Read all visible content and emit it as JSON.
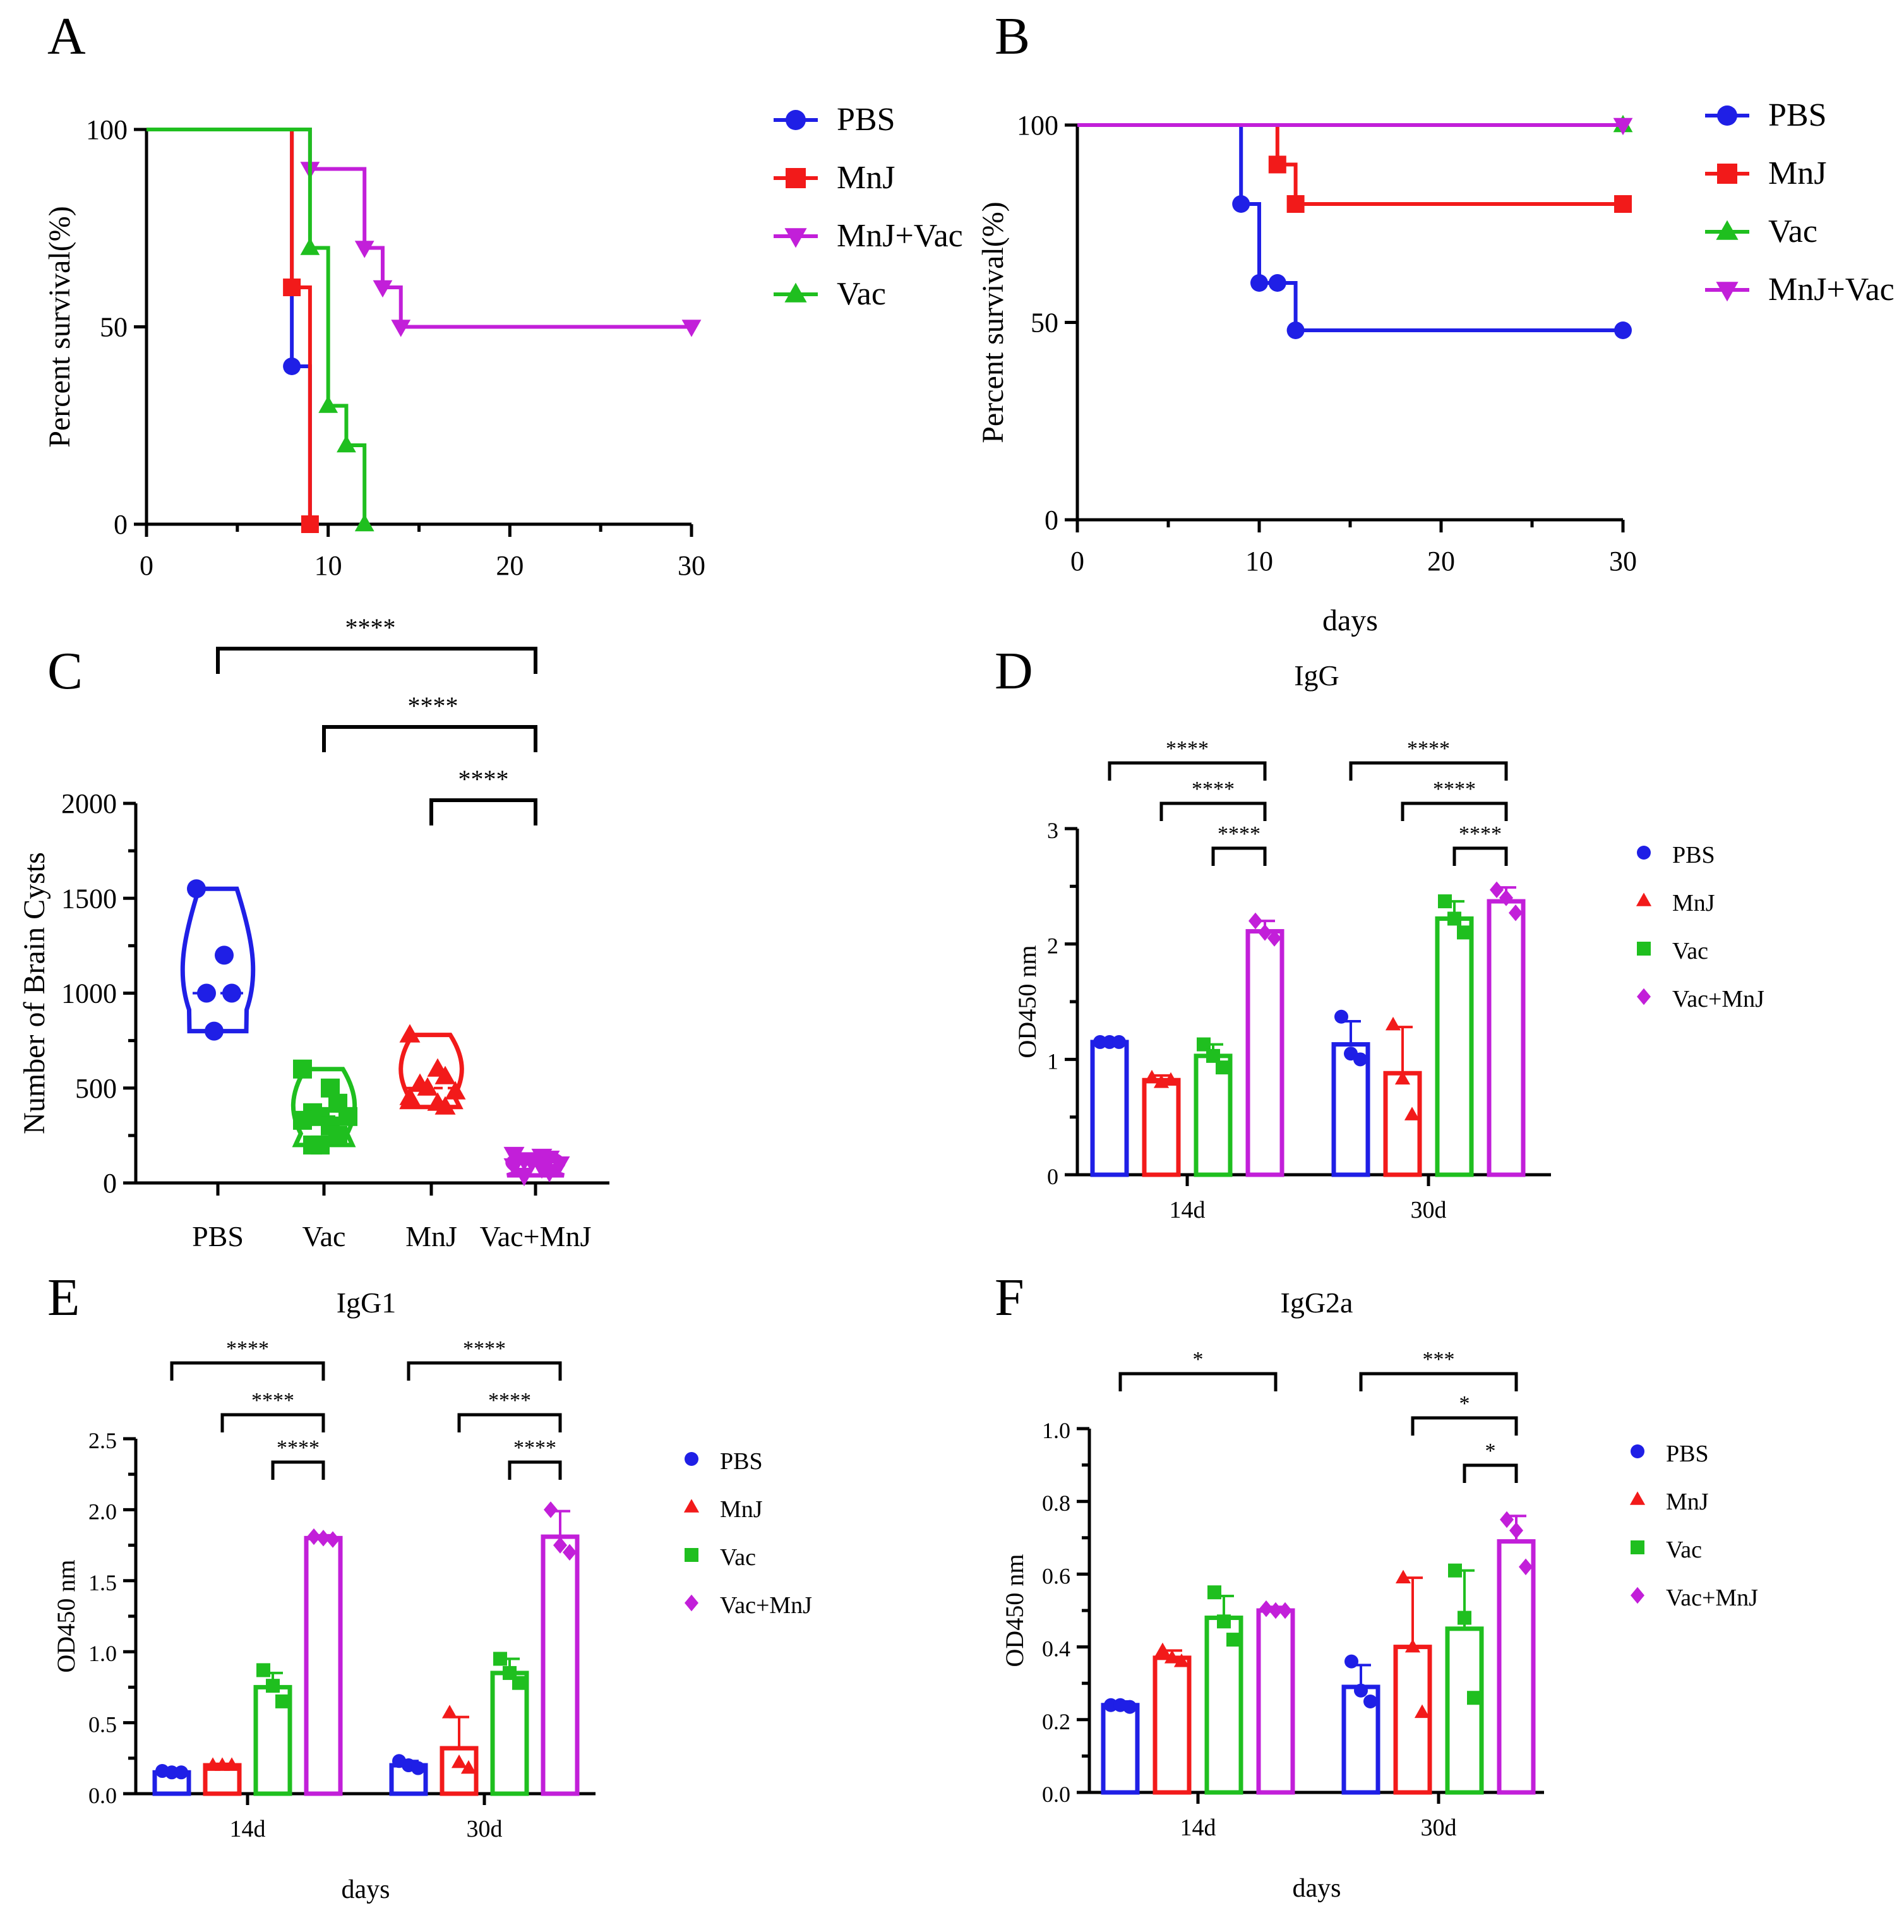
{
  "colors": {
    "blue": "#1f1fe6",
    "red": "#f21a1a",
    "green": "#1fbf1f",
    "magenta": "#c21fd9",
    "axis": "#000000"
  },
  "chart_data": [
    {
      "id": "A",
      "panel_label": "A",
      "type": "line",
      "subtype": "step",
      "title": "",
      "xlabel": "",
      "ylabel": "Percent survival(%)",
      "xlim": [
        0,
        30
      ],
      "ylim": [
        0,
        100
      ],
      "xticks": [
        "0",
        "10",
        "20",
        "30"
      ],
      "yticks": [
        "0",
        "50",
        "100"
      ],
      "legend": {
        "position": "right"
      },
      "series": [
        {
          "name": "PBS",
          "color": "blue",
          "marker": "circle",
          "x": [
            0,
            8,
            9
          ],
          "y": [
            100,
            40,
            0
          ]
        },
        {
          "name": "MnJ",
          "color": "red",
          "marker": "square",
          "x": [
            0,
            8,
            9
          ],
          "y": [
            100,
            60,
            0
          ]
        },
        {
          "name": "MnJ+Vac",
          "color": "magenta",
          "marker": "triangle-down",
          "x": [
            0,
            9,
            12,
            13,
            14,
            30
          ],
          "y": [
            100,
            90,
            70,
            60,
            50,
            50
          ]
        },
        {
          "name": "Vac",
          "color": "green",
          "marker": "triangle-up",
          "x": [
            0,
            9,
            10,
            11,
            12
          ],
          "y": [
            100,
            70,
            30,
            20,
            0
          ]
        }
      ]
    },
    {
      "id": "B",
      "panel_label": "B",
      "type": "line",
      "subtype": "step",
      "title": "",
      "xlabel": "days",
      "ylabel": "Percent survival(%)",
      "xlim": [
        0,
        30
      ],
      "ylim": [
        0,
        100
      ],
      "xticks": [
        "0",
        "10",
        "20",
        "30"
      ],
      "yticks": [
        "0",
        "50",
        "100"
      ],
      "legend": {
        "position": "right"
      },
      "series": [
        {
          "name": "PBS",
          "color": "blue",
          "marker": "circle",
          "x": [
            0,
            9,
            10,
            11,
            12,
            30
          ],
          "y": [
            100,
            80,
            60,
            60,
            48,
            48
          ]
        },
        {
          "name": "MnJ",
          "color": "red",
          "marker": "square",
          "x": [
            0,
            11,
            12,
            30
          ],
          "y": [
            100,
            90,
            80,
            80
          ]
        },
        {
          "name": "Vac",
          "color": "green",
          "marker": "triangle-up",
          "x": [
            0,
            30
          ],
          "y": [
            100,
            100
          ]
        },
        {
          "name": "MnJ+Vac",
          "color": "magenta",
          "marker": "triangle-down",
          "x": [
            0,
            30
          ],
          "y": [
            100,
            100
          ]
        }
      ]
    },
    {
      "id": "C",
      "panel_label": "C",
      "type": "violin",
      "title": "",
      "xlabel": "",
      "ylabel": "Number of Brain Cysts",
      "ylim": [
        0,
        2000
      ],
      "yticks": [
        "0",
        "500",
        "1000",
        "1500",
        "2000"
      ],
      "categories": [
        "PBS",
        "Vac",
        "MnJ",
        "Vac+MnJ"
      ],
      "groups": [
        {
          "name": "PBS",
          "color": "blue",
          "marker": "circle",
          "points": [
            1550,
            1200,
            1000,
            1000,
            800
          ],
          "range": [
            800,
            1550
          ]
        },
        {
          "name": "Vac",
          "color": "green",
          "marker": "square",
          "points": [
            600,
            500,
            420,
            370,
            350,
            350,
            330,
            300,
            250,
            200,
            200
          ],
          "range": [
            200,
            600
          ]
        },
        {
          "name": "MnJ",
          "color": "red",
          "marker": "triangle-up",
          "points": [
            780,
            600,
            560,
            520,
            500,
            480,
            450,
            420,
            400
          ],
          "range": [
            400,
            780
          ]
        },
        {
          "name": "Vac+MnJ",
          "color": "magenta",
          "marker": "triangle-down",
          "points": [
            150,
            140,
            130,
            120,
            110,
            100,
            90,
            80,
            60,
            40
          ],
          "range": [
            40,
            150
          ]
        }
      ],
      "significance": [
        {
          "from": "PBS",
          "to": "Vac+MnJ",
          "label": "****"
        },
        {
          "from": "Vac",
          "to": "Vac+MnJ",
          "label": "****"
        },
        {
          "from": "MnJ",
          "to": "Vac+MnJ",
          "label": "****"
        }
      ]
    },
    {
      "id": "D",
      "panel_label": "D",
      "type": "bar",
      "title": "IgG",
      "xlabel": "",
      "ylabel": "OD450 nm",
      "ylim": [
        0,
        3
      ],
      "yticks": [
        "0",
        "1",
        "2",
        "3"
      ],
      "categories": [
        "14d",
        "30d"
      ],
      "legend": {
        "position": "right"
      },
      "series": [
        {
          "name": "PBS",
          "color": "blue",
          "marker": "circle",
          "values": [
            1.15,
            1.13
          ],
          "err": [
            0.02,
            0.2
          ],
          "points": [
            [
              1.15,
              1.15,
              1.15
            ],
            [
              1.37,
              1.05,
              1.0
            ]
          ]
        },
        {
          "name": "MnJ",
          "color": "red",
          "marker": "triangle-up",
          "values": [
            0.82,
            0.88
          ],
          "err": [
            0.04,
            0.4
          ],
          "points": [
            [
              0.84,
              0.8,
              0.82
            ],
            [
              1.3,
              0.83,
              0.52
            ]
          ]
        },
        {
          "name": "Vac",
          "color": "green",
          "marker": "square",
          "values": [
            1.03,
            2.22
          ],
          "err": [
            0.1,
            0.15
          ],
          "points": [
            [
              1.13,
              1.03,
              0.93
            ],
            [
              2.37,
              2.22,
              2.1
            ]
          ]
        },
        {
          "name": "Vac+MnJ",
          "color": "magenta",
          "marker": "diamond",
          "values": [
            2.11,
            2.37
          ],
          "err": [
            0.09,
            0.12
          ],
          "points": [
            [
              2.2,
              2.1,
              2.05
            ],
            [
              2.47,
              2.4,
              2.27
            ]
          ]
        }
      ],
      "significance": [
        {
          "group": "14d",
          "from": "PBS",
          "to": "Vac+MnJ",
          "label": "****"
        },
        {
          "group": "14d",
          "from": "MnJ",
          "to": "Vac+MnJ",
          "label": "****"
        },
        {
          "group": "14d",
          "from": "Vac",
          "to": "Vac+MnJ",
          "label": "****"
        },
        {
          "group": "30d",
          "from": "PBS",
          "to": "Vac+MnJ",
          "label": "****"
        },
        {
          "group": "30d",
          "from": "MnJ",
          "to": "Vac+MnJ",
          "label": "****"
        },
        {
          "group": "30d",
          "from": "Vac",
          "to": "Vac+MnJ",
          "label": "****"
        }
      ]
    },
    {
      "id": "E",
      "panel_label": "E",
      "type": "bar",
      "title": "IgG1",
      "xlabel": "days",
      "ylabel": "OD450 nm",
      "ylim": [
        0,
        2.5
      ],
      "yticks": [
        "0.0",
        "0.5",
        "1.0",
        "1.5",
        "2.0",
        "2.5"
      ],
      "categories": [
        "14d",
        "30d"
      ],
      "legend": {
        "position": "right"
      },
      "series": [
        {
          "name": "PBS",
          "color": "blue",
          "marker": "circle",
          "values": [
            0.15,
            0.2
          ],
          "err": [
            0.02,
            0.03
          ],
          "points": [
            [
              0.16,
              0.15,
              0.15
            ],
            [
              0.23,
              0.2,
              0.18
            ]
          ]
        },
        {
          "name": "MnJ",
          "color": "red",
          "marker": "triangle-up",
          "values": [
            0.2,
            0.32
          ],
          "err": [
            0.01,
            0.22
          ],
          "points": [
            [
              0.2,
              0.2,
              0.2
            ],
            [
              0.57,
              0.22,
              0.18
            ]
          ]
        },
        {
          "name": "Vac",
          "color": "green",
          "marker": "square",
          "values": [
            0.75,
            0.85
          ],
          "err": [
            0.1,
            0.1
          ],
          "points": [
            [
              0.87,
              0.76,
              0.65
            ],
            [
              0.95,
              0.85,
              0.78
            ]
          ]
        },
        {
          "name": "Vac+MnJ",
          "color": "magenta",
          "marker": "diamond",
          "values": [
            1.8,
            1.81
          ],
          "err": [
            0.02,
            0.18
          ],
          "points": [
            [
              1.81,
              1.8,
              1.79
            ],
            [
              2.0,
              1.75,
              1.7
            ]
          ]
        }
      ],
      "significance": [
        {
          "group": "14d",
          "from": "PBS",
          "to": "Vac+MnJ",
          "label": "****"
        },
        {
          "group": "14d",
          "from": "MnJ",
          "to": "Vac+MnJ",
          "label": "****"
        },
        {
          "group": "14d",
          "from": "Vac",
          "to": "Vac+MnJ",
          "label": "****"
        },
        {
          "group": "30d",
          "from": "PBS",
          "to": "Vac+MnJ",
          "label": "****"
        },
        {
          "group": "30d",
          "from": "MnJ",
          "to": "Vac+MnJ",
          "label": "****"
        },
        {
          "group": "30d",
          "from": "Vac",
          "to": "Vac+MnJ",
          "label": "****"
        }
      ]
    },
    {
      "id": "F",
      "panel_label": "F",
      "type": "bar",
      "title": "IgG2a",
      "xlabel": "days",
      "ylabel": "OD450 nm",
      "ylim": [
        0,
        1.0
      ],
      "yticks": [
        "0.0",
        "0.2",
        "0.4",
        "0.6",
        "0.8",
        "1.0"
      ],
      "categories": [
        "14d",
        "30d"
      ],
      "legend": {
        "position": "right"
      },
      "series": [
        {
          "name": "PBS",
          "color": "blue",
          "marker": "circle",
          "values": [
            0.24,
            0.29
          ],
          "err": [
            0.01,
            0.06
          ],
          "points": [
            [
              0.24,
              0.24,
              0.235
            ],
            [
              0.36,
              0.28,
              0.25
            ]
          ]
        },
        {
          "name": "MnJ",
          "color": "red",
          "marker": "triangle-up",
          "values": [
            0.37,
            0.4
          ],
          "err": [
            0.02,
            0.19
          ],
          "points": [
            [
              0.39,
              0.37,
              0.36
            ],
            [
              0.59,
              0.4,
              0.22
            ]
          ]
        },
        {
          "name": "Vac",
          "color": "green",
          "marker": "square",
          "values": [
            0.48,
            0.45
          ],
          "err": [
            0.06,
            0.16
          ],
          "points": [
            [
              0.55,
              0.47,
              0.42
            ],
            [
              0.61,
              0.48,
              0.26
            ]
          ]
        },
        {
          "name": "Vac+MnJ",
          "color": "magenta",
          "marker": "diamond",
          "values": [
            0.5,
            0.69
          ],
          "err": [
            0.01,
            0.07
          ],
          "points": [
            [
              0.505,
              0.5,
              0.5
            ],
            [
              0.75,
              0.72,
              0.62
            ]
          ]
        }
      ],
      "significance": [
        {
          "group": "14d",
          "from": "PBS",
          "to": "Vac+MnJ",
          "label": "*"
        },
        {
          "group": "30d",
          "from": "PBS",
          "to": "Vac+MnJ",
          "label": "***"
        },
        {
          "group": "30d",
          "from": "MnJ",
          "to": "Vac+MnJ",
          "label": "*"
        },
        {
          "group": "30d",
          "from": "Vac",
          "to": "Vac+MnJ",
          "label": "*"
        }
      ]
    }
  ]
}
